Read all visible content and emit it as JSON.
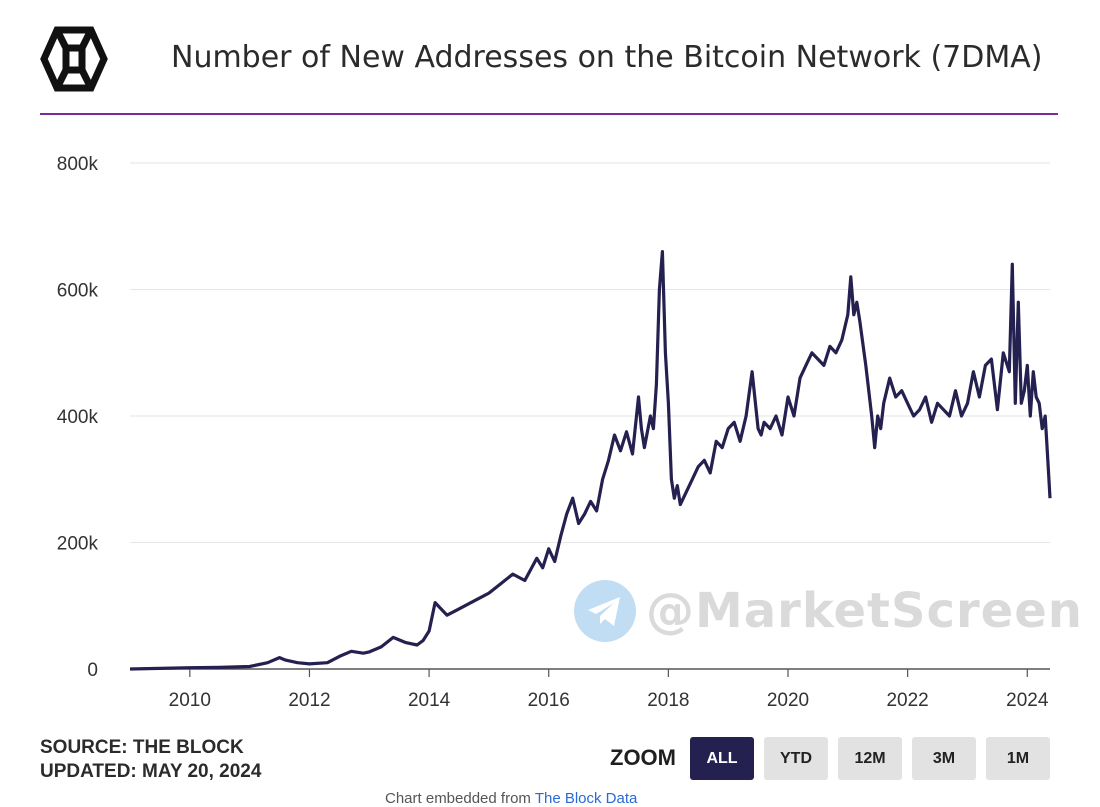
{
  "colors": {
    "brand_line": "#7b2b9c",
    "series": "#24204f",
    "grid": "#e6e6e6",
    "axis": "#333333",
    "zoom_active_bg": "#24204f",
    "zoom_active_text": "#ffffff",
    "zoom_bg": "#e2e2e2",
    "zoom_text": "#222222"
  },
  "header": {
    "logo_icon": "the-block-cube-logo",
    "title": "Number of New Addresses on the Bitcoin Network (7DMA)"
  },
  "watermark": {
    "icon": "telegram-icon",
    "text": "@MarketScreen"
  },
  "source": {
    "line1": "SOURCE: THE BLOCK",
    "line2": "UPDATED: MAY 20, 2024"
  },
  "zoom": {
    "label": "ZOOM",
    "buttons": [
      "ALL",
      "YTD",
      "12M",
      "3M",
      "1M"
    ],
    "active": "ALL"
  },
  "footer": {
    "prefix": "Chart embedded from ",
    "link": "The Block Data"
  },
  "chart_data": {
    "type": "line",
    "title": "Number of New Addresses on the Bitcoin Network (7DMA)",
    "xlabel": "",
    "ylabel": "",
    "xlim": [
      2009.0,
      2024.38
    ],
    "ylim": [
      0,
      800000
    ],
    "yticks": [
      0,
      200000,
      400000,
      600000,
      800000
    ],
    "ytick_labels": [
      "0",
      "200k",
      "400k",
      "600k",
      "800k"
    ],
    "xticks": [
      2010,
      2012,
      2014,
      2016,
      2018,
      2020,
      2022,
      2024
    ],
    "xtick_labels": [
      "2010",
      "2012",
      "2014",
      "2016",
      "2018",
      "2020",
      "2022",
      "2024"
    ],
    "grid": true,
    "legend": "none",
    "series": [
      {
        "name": "New Addresses (7DMA)",
        "x": [
          2009.0,
          2009.5,
          2010.0,
          2010.5,
          2011.0,
          2011.3,
          2011.5,
          2011.6,
          2011.8,
          2012.0,
          2012.3,
          2012.5,
          2012.7,
          2012.9,
          2013.0,
          2013.2,
          2013.4,
          2013.6,
          2013.8,
          2013.9,
          2014.0,
          2014.1,
          2014.3,
          2014.5,
          2014.7,
          2014.9,
          2015.0,
          2015.2,
          2015.4,
          2015.6,
          2015.8,
          2015.9,
          2016.0,
          2016.1,
          2016.2,
          2016.3,
          2016.4,
          2016.5,
          2016.6,
          2016.7,
          2016.8,
          2016.9,
          2017.0,
          2017.1,
          2017.2,
          2017.3,
          2017.4,
          2017.5,
          2017.55,
          2017.6,
          2017.7,
          2017.75,
          2017.8,
          2017.85,
          2017.9,
          2017.95,
          2018.0,
          2018.05,
          2018.1,
          2018.15,
          2018.2,
          2018.3,
          2018.4,
          2018.5,
          2018.6,
          2018.7,
          2018.8,
          2018.9,
          2019.0,
          2019.1,
          2019.2,
          2019.3,
          2019.4,
          2019.5,
          2019.55,
          2019.6,
          2019.7,
          2019.8,
          2019.9,
          2020.0,
          2020.1,
          2020.2,
          2020.3,
          2020.4,
          2020.5,
          2020.6,
          2020.7,
          2020.8,
          2020.9,
          2021.0,
          2021.05,
          2021.1,
          2021.15,
          2021.2,
          2021.3,
          2021.4,
          2021.45,
          2021.5,
          2021.55,
          2021.6,
          2021.7,
          2021.8,
          2021.9,
          2022.0,
          2022.1,
          2022.2,
          2022.3,
          2022.4,
          2022.5,
          2022.6,
          2022.7,
          2022.8,
          2022.9,
          2023.0,
          2023.1,
          2023.2,
          2023.3,
          2023.4,
          2023.5,
          2023.6,
          2023.7,
          2023.75,
          2023.8,
          2023.85,
          2023.9,
          2023.95,
          2024.0,
          2024.05,
          2024.1,
          2024.15,
          2024.2,
          2024.25,
          2024.3,
          2024.35,
          2024.38
        ],
        "values": [
          0,
          1000,
          2000,
          2500,
          4000,
          10000,
          18000,
          14000,
          10000,
          8000,
          10000,
          20000,
          28000,
          25000,
          27000,
          35000,
          50000,
          42000,
          38000,
          45000,
          60000,
          105000,
          85000,
          95000,
          105000,
          115000,
          120000,
          135000,
          150000,
          140000,
          175000,
          160000,
          190000,
          170000,
          210000,
          245000,
          270000,
          230000,
          245000,
          265000,
          250000,
          300000,
          330000,
          370000,
          345000,
          375000,
          340000,
          430000,
          380000,
          350000,
          400000,
          380000,
          450000,
          600000,
          660000,
          500000,
          420000,
          300000,
          270000,
          290000,
          260000,
          280000,
          300000,
          320000,
          330000,
          310000,
          360000,
          350000,
          380000,
          390000,
          360000,
          400000,
          470000,
          380000,
          370000,
          390000,
          380000,
          400000,
          370000,
          430000,
          400000,
          460000,
          480000,
          500000,
          490000,
          480000,
          510000,
          500000,
          520000,
          560000,
          620000,
          560000,
          580000,
          550000,
          480000,
          400000,
          350000,
          400000,
          380000,
          420000,
          460000,
          430000,
          440000,
          420000,
          400000,
          410000,
          430000,
          390000,
          420000,
          410000,
          400000,
          440000,
          400000,
          420000,
          470000,
          430000,
          480000,
          490000,
          410000,
          500000,
          470000,
          640000,
          420000,
          580000,
          420000,
          440000,
          480000,
          400000,
          470000,
          430000,
          420000,
          380000,
          400000,
          320000,
          270000
        ]
      }
    ]
  }
}
